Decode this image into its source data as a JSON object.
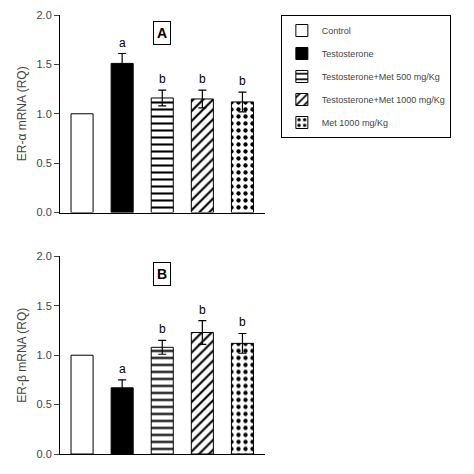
{
  "chart_data": [
    {
      "type": "bar",
      "title": "A",
      "ylabel": "ER-α mRNA (RQ)",
      "series": [
        {
          "name": "Control",
          "color": "white",
          "marker": "none",
          "values": [
            1.0
          ],
          "errors": [
            0.0
          ]
        },
        {
          "name": "Testosterone",
          "color": "black",
          "marker": "none",
          "values": [
            1.51
          ],
          "errors": [
            0.1
          ],
          "annotations": [
            "a"
          ]
        },
        {
          "name": "Testosterone+Met 500 mg/Kg",
          "color": "white",
          "marker": "horizontal",
          "values": [
            1.16
          ],
          "errors": [
            0.08
          ],
          "annotations": [
            "b"
          ]
        },
        {
          "name": "Testosterone+Met 1000 mg/Kg",
          "color": "white",
          "marker": "diagonal",
          "values": [
            1.15
          ],
          "errors": [
            0.09
          ],
          "annotations": [
            "b"
          ]
        },
        {
          "name": "Met 1000 mg/Kg",
          "color": "white",
          "marker": "dots",
          "values": [
            1.12
          ],
          "errors": [
            0.1
          ],
          "annotations": [
            "b"
          ]
        }
      ],
      "ylim": [
        0.0,
        2.0
      ],
      "yticks": [
        {
          "value": 0,
          "label": "0.0"
        },
        0.5,
        {
          "value": 1,
          "label": "1.0"
        },
        1.5,
        {
          "value": 2,
          "label": "2.0"
        }
      ],
      "grid": false,
      "legend": "upper right",
      "tick_labels": "y"
    },
    {
      "type": "bar",
      "title": "B",
      "ylabel": "ER-β mRNA (RQ)",
      "series": [
        {
          "name": "Control",
          "color": "white",
          "marker": "none",
          "values": [
            1.0
          ],
          "errors": [
            0.0
          ]
        },
        {
          "name": "Testosterone",
          "color": "black",
          "marker": "none",
          "values": [
            0.67
          ],
          "errors": [
            0.08
          ],
          "annotations": [
            "a"
          ]
        },
        {
          "name": "Testosterone+Met 500 mg/Kg",
          "color": "white",
          "marker": "horizontal",
          "values": [
            1.08
          ],
          "errors": [
            0.07
          ],
          "annotations": [
            "b"
          ]
        },
        {
          "name": "Testosterone+Met 1000 mg/Kg",
          "color": "white",
          "marker": "diagonal",
          "values": [
            1.23
          ],
          "errors": [
            0.12
          ],
          "annotations": [
            "b"
          ]
        },
        {
          "name": "Met 1000 mg/Kg",
          "color": "white",
          "marker": "dots",
          "values": [
            1.12
          ],
          "errors": [
            0.1
          ],
          "annotations": [
            "b"
          ]
        }
      ],
      "ylim": [
        0.0,
        2.0
      ],
      "yticks": [
        {
          "value": 0,
          "label": "0.0"
        },
        0.5,
        {
          "value": 1,
          "label": "1.0"
        },
        1.5,
        {
          "value": 2,
          "label": "2.0"
        }
      ],
      "grid": false,
      "tick_labels": "y"
    }
  ]
}
